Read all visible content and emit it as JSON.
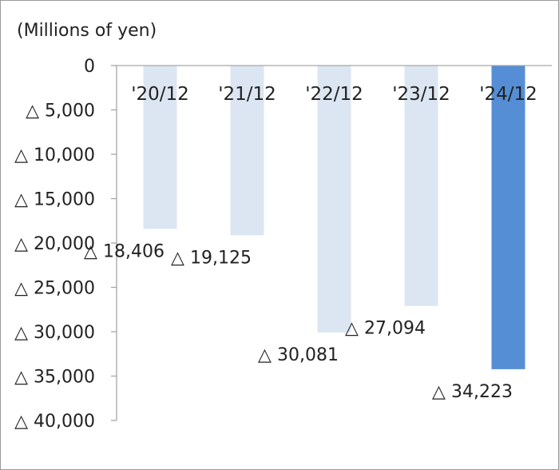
{
  "chart_data": {
    "type": "bar",
    "unit_label": "(Millions of yen)",
    "categories": [
      "'20/12",
      "'21/12",
      "'22/12",
      "'23/12",
      "'24/12"
    ],
    "values": [
      -18406,
      -19125,
      -30081,
      -27094,
      -34223
    ],
    "data_labels": [
      "△ 18,406",
      "△ 19,125",
      "△ 30,081",
      "△ 27,094",
      "△ 34,223"
    ],
    "y_tick_labels": [
      "0",
      "△ 5,000",
      "△ 10,000",
      "△ 15,000",
      "△ 20,000",
      "△ 25,000",
      "△ 30,000",
      "△ 35,000",
      "△ 40,000"
    ],
    "ylim": [
      -40000,
      0
    ],
    "grid": false,
    "legend": "none",
    "colors": {
      "past_bars": "#dce6f2",
      "highlight_bar": "#558ed5",
      "axis": "#a6a6a6"
    }
  }
}
